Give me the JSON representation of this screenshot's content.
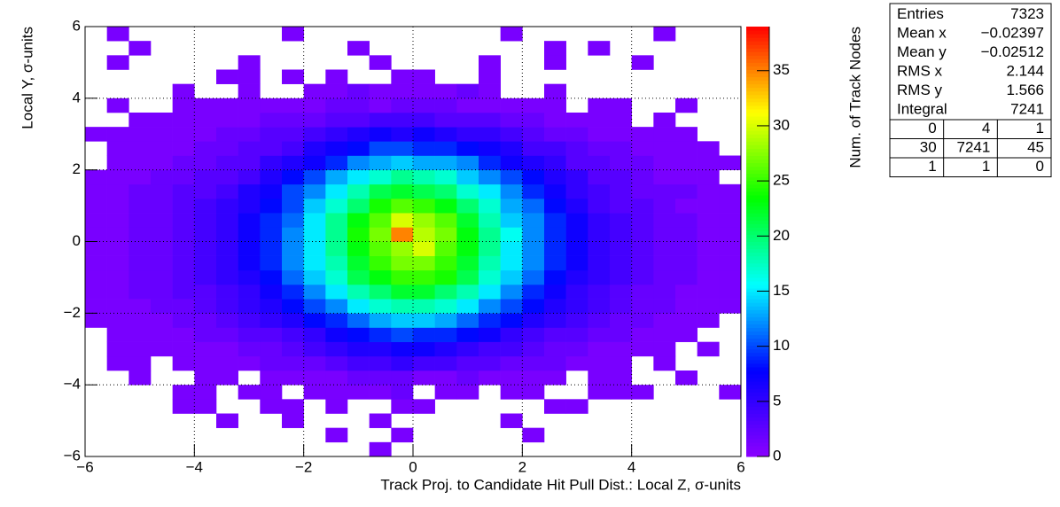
{
  "chart_data": {
    "type": "heatmap",
    "xlabel": "Track Proj. to Candidate Hit Pull Dist.: Local Z, σ-units",
    "ylabel": "Local Y, σ-units",
    "zlabel": "Num. of Track Nodes",
    "xlim": [
      -6,
      6
    ],
    "ylim": [
      -6,
      6
    ],
    "zlim": [
      0,
      39
    ],
    "xticks": [
      {
        "value": -6,
        "label": "−6"
      },
      {
        "value": -4,
        "label": "−4"
      },
      {
        "value": -2,
        "label": "−2"
      },
      0,
      2,
      4,
      6
    ],
    "yticks": [
      {
        "value": -6,
        "label": "−6"
      },
      {
        "value": -4,
        "label": "−4"
      },
      {
        "value": -2,
        "label": "−2"
      },
      0,
      2,
      4,
      6
    ],
    "zticks": [
      0,
      5,
      10,
      15,
      20,
      25,
      30,
      35
    ],
    "grid": true,
    "colormap": [
      "#8b00ff",
      "#0000ff",
      "#00ffff",
      "#00ff00",
      "#ffff00",
      "#ff0000"
    ],
    "xbins": [
      -6,
      -5.6,
      -5.2,
      -4.8,
      -4.4,
      -4,
      -3.6,
      -3.2,
      -2.8,
      -2.4,
      -2,
      -1.6,
      -1.2,
      -0.8,
      -0.4,
      0,
      0.4,
      0.8,
      1.2,
      1.6,
      2,
      2.4,
      2.8,
      3.2,
      3.6,
      4,
      4.4,
      4.8,
      5.2,
      5.6,
      6
    ],
    "ybins": [
      -6,
      -5.6,
      -5.2,
      -4.8,
      -4.4,
      -4,
      -3.6,
      -3.2,
      -2.8,
      -2.4,
      -2,
      -1.6,
      -1.2,
      -0.8,
      -0.4,
      0,
      0.4,
      0.8,
      1.2,
      1.6,
      2,
      2.4,
      2.8,
      3.2,
      3.6,
      4,
      4.4,
      4.8,
      5.2,
      5.6,
      6
    ],
    "z": [
      [
        0,
        0,
        0,
        0,
        0,
        0,
        0,
        0,
        0,
        0,
        0,
        0,
        0,
        1,
        0,
        0,
        0,
        0,
        0,
        0,
        0,
        0,
        0,
        0,
        0,
        0,
        0,
        0,
        0,
        0
      ],
      [
        0,
        0,
        0,
        0,
        0,
        0,
        0,
        0,
        0,
        0,
        0,
        1,
        0,
        0,
        1,
        0,
        0,
        0,
        0,
        0,
        1,
        0,
        0,
        0,
        0,
        0,
        0,
        0,
        0,
        0
      ],
      [
        0,
        0,
        0,
        0,
        0,
        0,
        1,
        0,
        0,
        1,
        0,
        0,
        0,
        1,
        0,
        0,
        0,
        0,
        0,
        1,
        0,
        0,
        0,
        0,
        0,
        0,
        0,
        0,
        0,
        0
      ],
      [
        0,
        0,
        0,
        0,
        1,
        1,
        0,
        0,
        1,
        1,
        0,
        1,
        0,
        0,
        1,
        1,
        0,
        0,
        0,
        0,
        0,
        1,
        1,
        0,
        0,
        0,
        0,
        0,
        0,
        0
      ],
      [
        0,
        0,
        0,
        0,
        1,
        1,
        0,
        1,
        1,
        0,
        1,
        1,
        1,
        1,
        2,
        0,
        1,
        1,
        0,
        1,
        1,
        0,
        0,
        1,
        1,
        1,
        0,
        0,
        0,
        1
      ],
      [
        0,
        0,
        1,
        0,
        0,
        1,
        1,
        0,
        1,
        1,
        1,
        1,
        2,
        2,
        2,
        1,
        1,
        2,
        1,
        1,
        1,
        1,
        0,
        1,
        1,
        0,
        0,
        1,
        0,
        0
      ],
      [
        0,
        1,
        1,
        0,
        1,
        1,
        1,
        1,
        2,
        2,
        2,
        3,
        4,
        4,
        5,
        4,
        4,
        3,
        3,
        2,
        2,
        2,
        1,
        1,
        1,
        0,
        1,
        0,
        0,
        0
      ],
      [
        0,
        1,
        1,
        1,
        1,
        1,
        1,
        2,
        2,
        3,
        4,
        5,
        6,
        6,
        7,
        7,
        6,
        5,
        4,
        4,
        3,
        2,
        2,
        1,
        1,
        1,
        1,
        0,
        1,
        0
      ],
      [
        0,
        1,
        1,
        1,
        1,
        2,
        2,
        3,
        3,
        4,
        5,
        7,
        8,
        9,
        10,
        9,
        9,
        8,
        7,
        5,
        4,
        3,
        3,
        2,
        2,
        1,
        1,
        1,
        0,
        0
      ],
      [
        1,
        1,
        1,
        1,
        2,
        2,
        3,
        4,
        5,
        6,
        8,
        9,
        11,
        13,
        14,
        14,
        13,
        11,
        9,
        8,
        6,
        5,
        4,
        3,
        2,
        2,
        1,
        1,
        1,
        0
      ],
      [
        1,
        1,
        1,
        2,
        2,
        3,
        4,
        5,
        6,
        8,
        10,
        12,
        15,
        17,
        18,
        18,
        17,
        15,
        12,
        10,
        8,
        6,
        5,
        4,
        3,
        2,
        2,
        1,
        1,
        1
      ],
      [
        1,
        1,
        2,
        2,
        3,
        3,
        4,
        5,
        7,
        9,
        12,
        15,
        18,
        20,
        22,
        22,
        20,
        18,
        15,
        12,
        9,
        7,
        5,
        4,
        3,
        2,
        2,
        1,
        1,
        1
      ],
      [
        1,
        1,
        2,
        2,
        3,
        4,
        5,
        6,
        8,
        11,
        14,
        17,
        21,
        23,
        25,
        25,
        24,
        21,
        17,
        14,
        11,
        8,
        6,
        5,
        4,
        3,
        2,
        2,
        1,
        1
      ],
      [
        1,
        1,
        2,
        2,
        3,
        4,
        5,
        7,
        9,
        12,
        15,
        18,
        22,
        25,
        27,
        27,
        25,
        22,
        18,
        15,
        12,
        9,
        7,
        5,
        4,
        3,
        2,
        2,
        1,
        1
      ],
      [
        1,
        1,
        2,
        2,
        3,
        4,
        5,
        7,
        9,
        12,
        15,
        19,
        23,
        26,
        28,
        30,
        26,
        23,
        19,
        15,
        12,
        9,
        7,
        5,
        4,
        3,
        2,
        2,
        1,
        1
      ],
      [
        1,
        1,
        2,
        2,
        3,
        4,
        5,
        7,
        9,
        12,
        15,
        19,
        24,
        27,
        35,
        29,
        27,
        23,
        19,
        16,
        12,
        9,
        7,
        5,
        4,
        3,
        2,
        2,
        1,
        1
      ],
      [
        1,
        1,
        2,
        2,
        3,
        4,
        5,
        7,
        9,
        11,
        15,
        19,
        23,
        26,
        30,
        28,
        26,
        22,
        18,
        14,
        12,
        9,
        7,
        5,
        4,
        3,
        2,
        2,
        1,
        1
      ],
      [
        1,
        1,
        2,
        2,
        3,
        4,
        5,
        6,
        8,
        10,
        14,
        17,
        20,
        24,
        26,
        25,
        23,
        20,
        17,
        13,
        11,
        8,
        6,
        4,
        3,
        3,
        2,
        1,
        1,
        1
      ],
      [
        1,
        1,
        2,
        2,
        3,
        3,
        4,
        6,
        7,
        10,
        12,
        15,
        18,
        21,
        22,
        21,
        20,
        17,
        15,
        12,
        9,
        7,
        5,
        4,
        3,
        2,
        2,
        2,
        1,
        1
      ],
      [
        1,
        1,
        1,
        2,
        2,
        3,
        3,
        4,
        6,
        8,
        10,
        13,
        15,
        17,
        19,
        18,
        17,
        14,
        12,
        10,
        8,
        6,
        5,
        3,
        3,
        2,
        1,
        1,
        1,
        0
      ],
      [
        0,
        1,
        1,
        1,
        2,
        2,
        3,
        3,
        5,
        6,
        7,
        9,
        12,
        13,
        14,
        13,
        13,
        12,
        9,
        7,
        6,
        5,
        3,
        3,
        2,
        2,
        1,
        1,
        1,
        1
      ],
      [
        0,
        1,
        1,
        1,
        1,
        2,
        2,
        3,
        3,
        4,
        6,
        7,
        8,
        10,
        10,
        9,
        9,
        8,
        7,
        6,
        4,
        4,
        3,
        2,
        2,
        1,
        1,
        1,
        1,
        0
      ],
      [
        1,
        1,
        1,
        1,
        1,
        1,
        2,
        2,
        3,
        3,
        4,
        5,
        6,
        7,
        6,
        7,
        6,
        5,
        5,
        4,
        3,
        2,
        2,
        1,
        1,
        1,
        1,
        1,
        0,
        0
      ],
      [
        0,
        0,
        1,
        1,
        1,
        1,
        1,
        1,
        2,
        2,
        2,
        3,
        3,
        4,
        4,
        4,
        3,
        3,
        3,
        2,
        2,
        1,
        1,
        1,
        1,
        0,
        1,
        0,
        0,
        0
      ],
      [
        0,
        1,
        0,
        0,
        1,
        1,
        1,
        1,
        1,
        1,
        1,
        2,
        2,
        1,
        2,
        2,
        2,
        1,
        1,
        1,
        1,
        1,
        0,
        1,
        1,
        0,
        0,
        1,
        0,
        0
      ],
      [
        0,
        0,
        0,
        0,
        1,
        0,
        0,
        1,
        0,
        0,
        1,
        1,
        2,
        1,
        1,
        1,
        1,
        2,
        1,
        0,
        0,
        1,
        0,
        0,
        0,
        0,
        0,
        0,
        0,
        0
      ],
      [
        0,
        0,
        0,
        0,
        0,
        0,
        1,
        1,
        0,
        1,
        0,
        1,
        0,
        0,
        1,
        1,
        0,
        0,
        1,
        0,
        0,
        0,
        0,
        0,
        0,
        0,
        0,
        0,
        0,
        0
      ],
      [
        0,
        1,
        0,
        0,
        0,
        0,
        0,
        1,
        0,
        0,
        0,
        0,
        0,
        1,
        0,
        0,
        0,
        0,
        1,
        0,
        0,
        1,
        0,
        0,
        0,
        1,
        0,
        0,
        0,
        0
      ],
      [
        0,
        0,
        1,
        0,
        0,
        0,
        0,
        0,
        0,
        0,
        0,
        0,
        1,
        0,
        0,
        0,
        0,
        0,
        0,
        0,
        0,
        1,
        0,
        1,
        0,
        0,
        0,
        0,
        0,
        0
      ],
      [
        0,
        1,
        0,
        0,
        0,
        0,
        0,
        0,
        0,
        1,
        0,
        0,
        0,
        0,
        0,
        0,
        0,
        0,
        0,
        1,
        0,
        0,
        0,
        0,
        0,
        0,
        1,
        0,
        0,
        0
      ]
    ],
    "stats": {
      "rows": [
        [
          "Entries",
          "7323"
        ],
        [
          "Mean x",
          "−0.02397"
        ],
        [
          "Mean y",
          "−0.02512"
        ],
        [
          "RMS x",
          "2.144"
        ],
        [
          "RMS y",
          "1.566"
        ],
        [
          "Integral",
          "7241"
        ]
      ],
      "grid": [
        [
          "0",
          "4",
          "1"
        ],
        [
          "30",
          "7241",
          "45"
        ],
        [
          "1",
          "1",
          "0"
        ]
      ]
    }
  }
}
